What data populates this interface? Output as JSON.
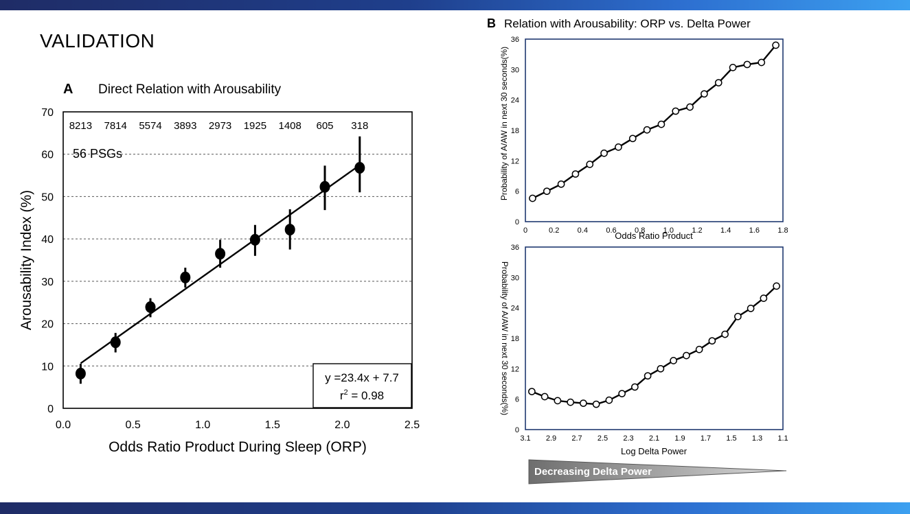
{
  "slide": {
    "title": "VALIDATION"
  },
  "colors": {
    "band_dark": "#1f2c66",
    "band_light": "#3ca0f0",
    "line": "#000000",
    "frame_b": "#1f3870",
    "wedge": "#808080"
  },
  "chart_data": [
    {
      "type": "scatter",
      "panel": "A",
      "title": "Direct Relation with Arousability",
      "xlabel": "Odds Ratio Product During Sleep (ORP)",
      "ylabel": "Arousability Index (%)",
      "xlim": [
        0,
        2.5
      ],
      "ylim": [
        0,
        70
      ],
      "xticks": [
        "0.0",
        "0.5",
        "1.0",
        "1.5",
        "2.0",
        "2.5"
      ],
      "yticks": [
        "0",
        "10",
        "20",
        "30",
        "40",
        "50",
        "60",
        "70"
      ],
      "grid": "horizontal dashed",
      "points": [
        {
          "x": 0.125,
          "y": 8.2,
          "lo": 5.8,
          "hi": 10.5
        },
        {
          "x": 0.375,
          "y": 15.6,
          "lo": 13.2,
          "hi": 17.8
        },
        {
          "x": 0.625,
          "y": 23.9,
          "lo": 21.5,
          "hi": 26.0
        },
        {
          "x": 0.875,
          "y": 30.9,
          "lo": 28.5,
          "hi": 33.2
        },
        {
          "x": 1.125,
          "y": 36.5,
          "lo": 33.2,
          "hi": 39.8
        },
        {
          "x": 1.375,
          "y": 39.8,
          "lo": 36.0,
          "hi": 43.3
        },
        {
          "x": 1.625,
          "y": 42.2,
          "lo": 37.5,
          "hi": 47.0
        },
        {
          "x": 1.875,
          "y": 52.3,
          "lo": 46.8,
          "hi": 57.3
        },
        {
          "x": 2.125,
          "y": 56.8,
          "lo": 51.0,
          "hi": 64.2
        }
      ],
      "counts": [
        "8213",
        "7814",
        "5574",
        "3893",
        "2973",
        "1925",
        "1408",
        "605",
        "318"
      ],
      "sample_note": "56 PSGs",
      "fit": {
        "slope": 23.4,
        "intercept": 7.7,
        "x_range": [
          0.125,
          2.125
        ],
        "equation": "y =23.4x + 7.7",
        "r2_label": "r",
        "r2_sup": "2",
        "r2_value": " = 0.98"
      }
    },
    {
      "type": "line",
      "panel": "B",
      "title": "Relation with Arousability: ORP vs. Delta Power",
      "xlabel": "Odds Ratio Product",
      "ylabel": "Probability of A/AW in next 30 seconds(%)",
      "xlim": [
        0,
        1.8
      ],
      "ylim": [
        0,
        36
      ],
      "xticks": [
        "0",
        "0.2",
        "0.4",
        "0.6",
        "0.8",
        "1.0",
        "1.2",
        "1.4",
        "1.6",
        "1.8"
      ],
      "yticks": [
        "0",
        "6",
        "12",
        "18",
        "24",
        "30",
        "36"
      ],
      "x": [
        0.05,
        0.15,
        0.25,
        0.35,
        0.45,
        0.55,
        0.65,
        0.75,
        0.85,
        0.95,
        1.05,
        1.15,
        1.25,
        1.35,
        1.45,
        1.55,
        1.65,
        1.75
      ],
      "y": [
        4.6,
        6.0,
        7.4,
        9.4,
        11.3,
        13.5,
        14.7,
        16.4,
        18.1,
        19.2,
        21.8,
        22.6,
        25.2,
        27.4,
        30.4,
        31.0,
        31.4,
        34.8
      ]
    },
    {
      "type": "line",
      "panel": "B-lower",
      "xlabel": "Log Delta Power",
      "ylabel": "Probability of A/AW in next 30 seconds(%)",
      "xlim": [
        3.1,
        1.1
      ],
      "ylim": [
        0,
        36
      ],
      "xticks": [
        "3.1",
        "2.9",
        "2.7",
        "2.5",
        "2.3",
        "2.1",
        "1.9",
        "1.7",
        "1.5",
        "1.3",
        "1.1"
      ],
      "yticks": [
        "0",
        "6",
        "12",
        "18",
        "24",
        "30",
        "36"
      ],
      "x": [
        3.05,
        2.95,
        2.85,
        2.75,
        2.65,
        2.55,
        2.45,
        2.35,
        2.25,
        2.15,
        2.05,
        1.95,
        1.85,
        1.75,
        1.65,
        1.55,
        1.45,
        1.35,
        1.25,
        1.15
      ],
      "y": [
        7.5,
        6.5,
        5.7,
        5.4,
        5.2,
        5.0,
        5.8,
        7.1,
        8.4,
        10.6,
        12.0,
        13.6,
        14.6,
        15.8,
        17.5,
        18.8,
        22.3,
        23.9,
        25.9,
        28.3
      ],
      "annotation": "Decreasing Delta Power"
    }
  ]
}
